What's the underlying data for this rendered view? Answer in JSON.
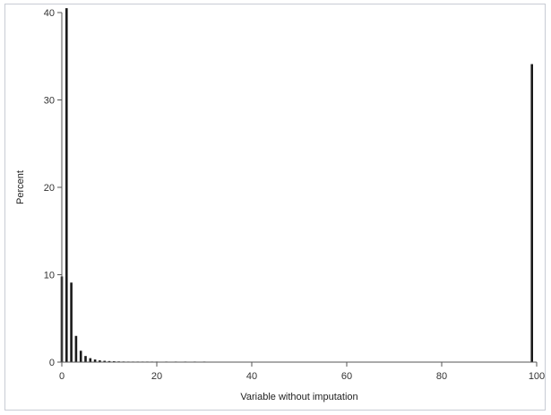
{
  "chart_data": {
    "type": "bar",
    "xlabel": "Variable without imputation",
    "ylabel": "Percent",
    "xlim": [
      0,
      100
    ],
    "ylim": [
      0,
      40
    ],
    "xticks": [
      0,
      20,
      40,
      60,
      80,
      100
    ],
    "yticks": [
      0,
      10,
      20,
      30,
      40
    ],
    "grid": false,
    "colors": {
      "bar": "#1a1a1a",
      "axis": "#555555",
      "frame": "#c8ccd4"
    },
    "series": [
      {
        "x": [
          0,
          1,
          2,
          3,
          4,
          5,
          6,
          7,
          8,
          9,
          10,
          11,
          12,
          13,
          14,
          15,
          16,
          17,
          18,
          19,
          20,
          22,
          24,
          26,
          28,
          30,
          99
        ],
        "values": [
          9.8,
          40.5,
          9.1,
          3.0,
          1.3,
          0.7,
          0.45,
          0.3,
          0.2,
          0.15,
          0.12,
          0.1,
          0.08,
          0.07,
          0.06,
          0.05,
          0.05,
          0.04,
          0.04,
          0.03,
          0.03,
          0.02,
          0.02,
          0.02,
          0.02,
          0.02,
          34.1
        ]
      }
    ]
  }
}
